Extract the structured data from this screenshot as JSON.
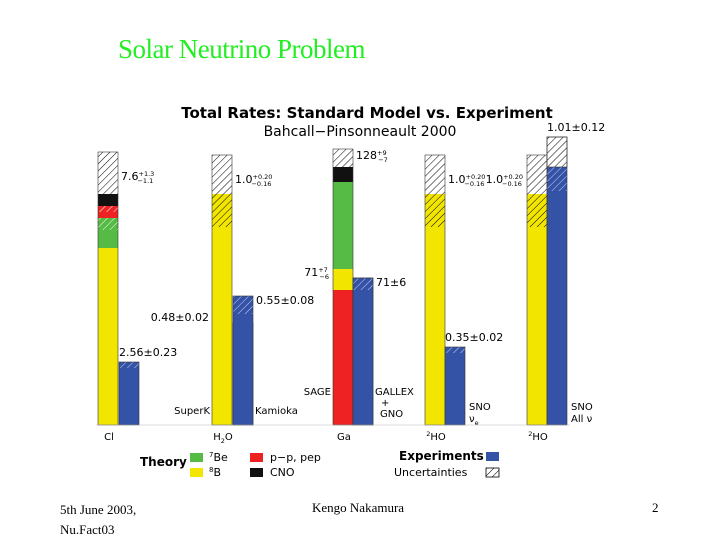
{
  "slide": {
    "title": "Solar Neutrino Problem",
    "footer_left_line1": "5th June 2003,",
    "footer_left_line2": "Nu.Fact03",
    "footer_center": "Kengo Nakamura",
    "footer_right": "2"
  },
  "chart_data": {
    "type": "bar",
    "title": "Total Rates: Standard Model vs. Experiment",
    "subtitle": "Bahcall−Pinsonneault 2000",
    "colors": {
      "7Be": "#55bb44",
      "8B": "#f2e600",
      "pp_pep": "#ee2222",
      "CNO": "#111111",
      "experiment": "#3553a6",
      "uncertainty": "#ffffff"
    },
    "legend": {
      "theory_label": "Theory",
      "items": [
        {
          "key": "7Be",
          "sup": "7",
          "label": "Be"
        },
        {
          "key": "8B",
          "sup": "8",
          "label": "B"
        },
        {
          "key": "pp_pep",
          "sup": "",
          "label": "p−p, pep"
        },
        {
          "key": "CNO",
          "sup": "",
          "label": "CNO"
        }
      ],
      "experiments_label": "Experiments",
      "uncertainties_label": "Uncertainties"
    },
    "groups": [
      {
        "target": "Cl",
        "theory": {
          "segments": [
            {
              "key": "8B",
              "value": 0.59
            },
            {
              "key": "7Be",
              "value": 0.06
            },
            {
              "key": "7Be_unc",
              "value": 0.04
            },
            {
              "key": "pp_pep",
              "value": 0.02
            },
            {
              "key": "pp_pep_unc",
              "value": 0.02
            },
            {
              "key": "CNO",
              "value": 0.04
            },
            {
              "key": "uncertainty",
              "value": 0.14
            }
          ],
          "label_main": "7.6",
          "label_plus": "+1.3",
          "label_minus": "−1.1"
        },
        "experiment": {
          "value": 0.2,
          "uncertainty": 0.02,
          "label": "2.56±0.23"
        },
        "exp_name_lines": []
      },
      {
        "target": "H2O",
        "target_sup": "",
        "target_sub": "2",
        "theory": {
          "segments": [
            {
              "key": "8B",
              "value": 0.66
            },
            {
              "key": "8B_unc",
              "value": 0.11
            },
            {
              "key": "uncertainty",
              "value": 0.13
            }
          ],
          "label_main": "1.0",
          "label_plus": "+0.20",
          "label_minus": "−0.16"
        },
        "experiment": {
          "value": 0.33,
          "uncertainty": 0.02,
          "label": "0.48±0.02",
          "label_side": "left"
        },
        "experiment2": {
          "value": 0.4,
          "uncertainty": 0.06,
          "label": "0.55±0.08"
        },
        "exp_name_lines": [
          "SuperK"
        ],
        "exp2_name_lines": [
          "Kamioka"
        ]
      },
      {
        "target": "Ga",
        "theory": {
          "segments": [
            {
              "key": "pp_pep",
              "value": 0.45
            },
            {
              "key": "8B",
              "value": 0.07
            },
            {
              "key": "7Be",
              "value": 0.29
            },
            {
              "key": "CNO",
              "value": 0.05
            },
            {
              "key": "uncertainty",
              "value": 0.06
            }
          ],
          "label_main": "128",
          "label_plus": "+9",
          "label_minus": "−7"
        },
        "experiment": {
          "value": 0.47,
          "uncertainty": 0.04,
          "label": "71",
          "label_plus": "+7",
          "label_minus": "−6",
          "label_side": "left"
        },
        "experiment2": {
          "value": 0.47,
          "uncertainty": 0.04,
          "label": "71±6"
        },
        "exp_name_lines": [
          "SAGE"
        ],
        "exp2_name_lines": [
          "GALLEX",
          "+",
          "GNO"
        ]
      },
      {
        "target": "H2O",
        "target_sup": "2",
        "target_sub": "",
        "theory": {
          "segments": [
            {
              "key": "8B",
              "value": 0.66
            },
            {
              "key": "8B_unc",
              "value": 0.11
            },
            {
              "key": "uncertainty",
              "value": 0.13
            }
          ],
          "label_main": "1.0",
          "label_plus": "+0.20",
          "label_minus": "−0.16"
        },
        "experiment": {
          "value": 0.25,
          "uncertainty": 0.02,
          "label": "0.35±0.02"
        },
        "exp_name_lines": [
          "SNO",
          "ν"
        ],
        "exp_name_sub": "e"
      },
      {
        "target": "H2O",
        "target_sup": "2",
        "target_sub": "",
        "theory": {
          "segments": [
            {
              "key": "8B",
              "value": 0.66
            },
            {
              "key": "8B_unc",
              "value": 0.11
            },
            {
              "key": "uncertainty",
              "value": 0.13
            }
          ],
          "label_main": "1.0",
          "label_plus": "+0.20",
          "label_minus": "−0.16",
          "label_side": "left"
        },
        "experiment": {
          "value": 0.82,
          "uncertainty": 0.08,
          "label": "1.01±0.12",
          "top_unc": 0.1
        },
        "exp_name_lines": [
          "SNO",
          "All ν"
        ]
      }
    ]
  }
}
